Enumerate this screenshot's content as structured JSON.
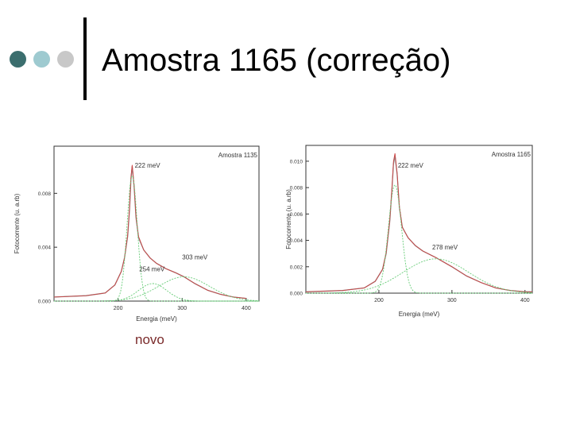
{
  "slide": {
    "title": "Amostra 1165 (correção)",
    "caption": "novo",
    "bullet_colors": [
      "#3b6e6e",
      "#9ecad0",
      "#c8c8c8"
    ]
  },
  "chart_data": [
    {
      "type": "line",
      "title": "Amostra 1135",
      "xlabel": "Energia (meV)",
      "ylabel": "Fotocorrente (u. a.rb)",
      "xlim": [
        100,
        420
      ],
      "ylim": [
        0.0,
        0.0115
      ],
      "xticks": [
        200,
        300,
        400
      ],
      "yticks": [
        0.0,
        0.004,
        0.008
      ],
      "ytick_labels": [
        "0.000",
        "0.004",
        "0.008"
      ],
      "grid": false,
      "series": [
        {
          "role": "data",
          "color": "#888888",
          "x": [
            100,
            150,
            180,
            195,
            205,
            210,
            215,
            218,
            220,
            222,
            225,
            228,
            232,
            240,
            250,
            260,
            275,
            290,
            303,
            320,
            340,
            360,
            380,
            400
          ],
          "y": [
            0.0003,
            0.0004,
            0.0006,
            0.0012,
            0.0022,
            0.0032,
            0.0048,
            0.0068,
            0.009,
            0.01,
            0.0085,
            0.0062,
            0.0047,
            0.0038,
            0.0032,
            0.0028,
            0.0024,
            0.0021,
            0.0018,
            0.0013,
            0.0008,
            0.0005,
            0.0003,
            0.0002
          ]
        },
        {
          "role": "fit",
          "color": "#cc4444",
          "x": [
            100,
            150,
            180,
            195,
            205,
            210,
            215,
            218,
            220,
            222,
            225,
            228,
            232,
            240,
            250,
            260,
            275,
            290,
            303,
            320,
            340,
            360,
            380,
            400
          ],
          "y": [
            0.0003,
            0.0004,
            0.0006,
            0.0012,
            0.0022,
            0.0032,
            0.0049,
            0.007,
            0.0092,
            0.0101,
            0.0086,
            0.0063,
            0.0048,
            0.0038,
            0.0032,
            0.0028,
            0.0024,
            0.0021,
            0.0018,
            0.0013,
            0.0008,
            0.0005,
            0.0003,
            0.0002
          ]
        },
        {
          "role": "component",
          "color": "#66cc77",
          "center": 222,
          "width": 8,
          "amplitude": 0.0093
        },
        {
          "role": "component",
          "color": "#66cc77",
          "center": 254,
          "width": 22,
          "amplitude": 0.0013
        },
        {
          "role": "component",
          "color": "#66cc77",
          "center": 303,
          "width": 40,
          "amplitude": 0.0018
        }
      ],
      "annotations": [
        {
          "text": "222 meV",
          "x": 226,
          "y": 0.0099
        },
        {
          "text": "254 meV",
          "x": 233,
          "y": 0.0022
        },
        {
          "text": "303 meV",
          "x": 300,
          "y": 0.0031
        }
      ]
    },
    {
      "type": "line",
      "title": "Amostra 1165",
      "xlabel": "Energia (meV)",
      "ylabel": "Fotocorrente (u. a.rb)",
      "xlim": [
        100,
        410
      ],
      "ylim": [
        0.0,
        0.0112
      ],
      "xticks": [
        200,
        300,
        400
      ],
      "yticks": [
        0.0,
        0.002,
        0.004,
        0.006,
        0.008,
        0.01
      ],
      "ytick_labels": [
        "0.000",
        "0.002",
        "0.004",
        "0.006",
        "0.008",
        "0.010"
      ],
      "grid": false,
      "series": [
        {
          "role": "data",
          "color": "#888888",
          "x": [
            100,
            150,
            180,
            195,
            205,
            210,
            215,
            218,
            220,
            222,
            225,
            228,
            232,
            240,
            250,
            260,
            278,
            300,
            320,
            340,
            360,
            380,
            400,
            410
          ],
          "y": [
            0.0001,
            0.0002,
            0.0004,
            0.0009,
            0.0018,
            0.003,
            0.0055,
            0.008,
            0.0098,
            0.0104,
            0.009,
            0.0065,
            0.005,
            0.0042,
            0.0036,
            0.0032,
            0.0027,
            0.002,
            0.0013,
            0.0008,
            0.0004,
            0.0002,
            0.0001,
            0.0001
          ]
        },
        {
          "role": "fit",
          "color": "#cc4444",
          "x": [
            100,
            150,
            180,
            195,
            205,
            210,
            215,
            218,
            220,
            222,
            225,
            228,
            232,
            240,
            250,
            260,
            278,
            300,
            320,
            340,
            360,
            380,
            400,
            410
          ],
          "y": [
            0.0001,
            0.0002,
            0.0004,
            0.0009,
            0.0018,
            0.0031,
            0.0056,
            0.0081,
            0.01,
            0.0106,
            0.0091,
            0.0066,
            0.005,
            0.0042,
            0.0036,
            0.0032,
            0.0027,
            0.002,
            0.0013,
            0.0008,
            0.0004,
            0.0002,
            0.0001,
            0.0001
          ]
        },
        {
          "role": "component",
          "color": "#66cc77",
          "center": 222,
          "width": 9,
          "amplitude": 0.0082
        },
        {
          "role": "component",
          "color": "#66cc77",
          "center": 278,
          "width": 45,
          "amplitude": 0.0026
        }
      ],
      "annotations": [
        {
          "text": "222 meV",
          "x": 226,
          "y": 0.0095
        },
        {
          "text": "278 meV",
          "x": 273,
          "y": 0.0033
        }
      ]
    }
  ]
}
